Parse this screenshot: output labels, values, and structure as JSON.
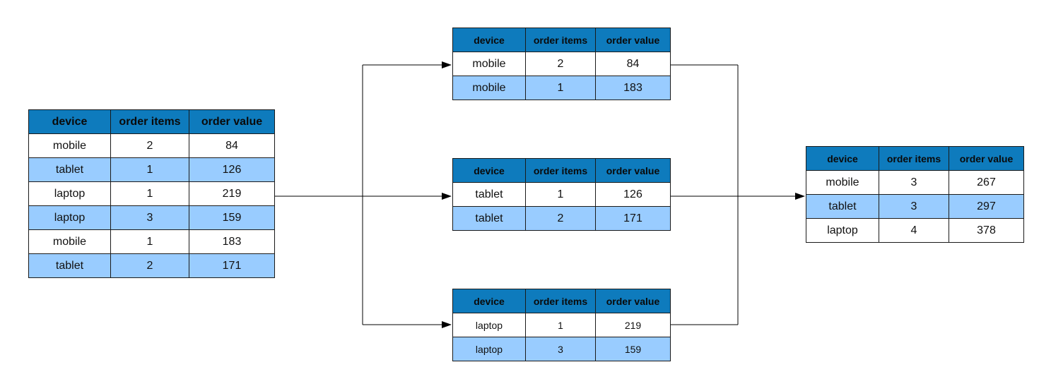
{
  "columns": [
    "device",
    "order items",
    "order value"
  ],
  "source_table": {
    "rows": [
      [
        "mobile",
        "2",
        "84"
      ],
      [
        "tablet",
        "1",
        "126"
      ],
      [
        "laptop",
        "1",
        "219"
      ],
      [
        "laptop",
        "3",
        "159"
      ],
      [
        "mobile",
        "1",
        "183"
      ],
      [
        "tablet",
        "2",
        "171"
      ]
    ]
  },
  "group_mobile": {
    "rows": [
      [
        "mobile",
        "2",
        "84"
      ],
      [
        "mobile",
        "1",
        "183"
      ]
    ]
  },
  "group_tablet": {
    "rows": [
      [
        "tablet",
        "1",
        "126"
      ],
      [
        "tablet",
        "2",
        "171"
      ]
    ]
  },
  "group_laptop": {
    "rows": [
      [
        "laptop",
        "1",
        "219"
      ],
      [
        "laptop",
        "3",
        "159"
      ]
    ]
  },
  "result_table": {
    "rows": [
      [
        "mobile",
        "3",
        "267"
      ],
      [
        "tablet",
        "3",
        "297"
      ],
      [
        "laptop",
        "4",
        "378"
      ]
    ]
  },
  "colors": {
    "header": "#0e7bbd",
    "row_alt": "#99ccff",
    "row": "#ffffff",
    "line": "#000000"
  }
}
